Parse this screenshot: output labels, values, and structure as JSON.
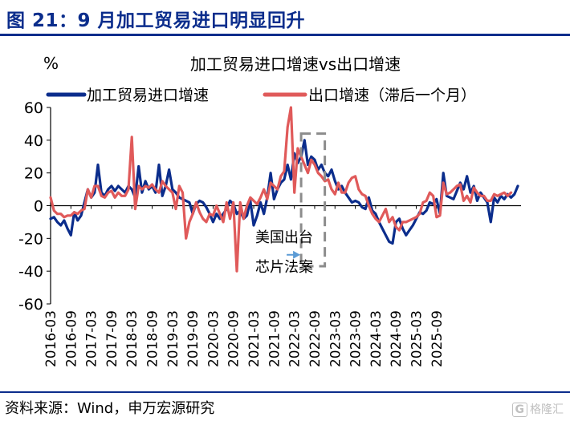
{
  "figure_title": "图 21：9 月加工贸易进口明显回升",
  "source": "资料来源：Wind，申万宏源研究",
  "watermark": "格隆汇",
  "watermark_icon": "G",
  "chart_data": {
    "type": "line",
    "title": "加工贸易进口增速vs出口增速",
    "ylabel": "%",
    "ylim": [
      -60,
      60
    ],
    "yticks": [
      60,
      40,
      20,
      0,
      -20,
      -40,
      -60
    ],
    "xticks": [
      "2016-03",
      "2016-09",
      "2017-03",
      "2017-09",
      "2018-03",
      "2018-09",
      "2019-03",
      "2019-09",
      "2020-03",
      "2020-09",
      "2021-03",
      "2021-09",
      "2022-03",
      "2022-09",
      "2023-03",
      "2023-09",
      "2024-03",
      "2024-09",
      "2025-03",
      "2025-09"
    ],
    "grid": false,
    "legend_position": "top",
    "annotation": {
      "lines": [
        "美国出台",
        "芯片法案"
      ],
      "box_x_range": [
        "2022-05",
        "2022-12"
      ],
      "box_y_range": [
        -37,
        44
      ],
      "arrow_target_y": -30
    },
    "series": [
      {
        "name": "加工贸易进口增速",
        "color": "#0b2d8c",
        "values": [
          -8,
          -7,
          -10,
          -12,
          -9,
          -14,
          -18,
          -4,
          -9,
          -6,
          2,
          10,
          5,
          8,
          25,
          8,
          6,
          10,
          12,
          9,
          12,
          10,
          8,
          12,
          10,
          5,
          24,
          8,
          15,
          10,
          12,
          8,
          25,
          6,
          12,
          22,
          10,
          8,
          5,
          4,
          3,
          2,
          -5,
          1,
          3,
          2,
          -1,
          -5,
          -10,
          -5,
          -8,
          -5,
          -2,
          3,
          1,
          -5,
          -3,
          -8,
          -6,
          3,
          -12,
          -6,
          2,
          -5,
          5,
          20,
          4,
          10,
          14,
          16,
          25,
          16,
          32,
          26,
          30,
          40,
          25,
          30,
          28,
          22,
          25,
          20,
          18,
          22,
          15,
          10,
          12,
          8,
          5,
          2,
          3,
          2,
          -1,
          -2,
          5,
          -3,
          -5,
          -10,
          -14,
          -18,
          -22,
          -23,
          -10,
          -8,
          -14,
          -18,
          -15,
          -12,
          -8,
          -4,
          -5,
          -3,
          2,
          1,
          4,
          -5,
          20,
          6,
          5,
          4,
          9,
          14,
          10,
          18,
          8,
          12,
          3,
          8,
          5,
          2,
          -10,
          5,
          2,
          6,
          4,
          7,
          5,
          7,
          12
        ]
      },
      {
        "name": "出口增速（滞后一个月）",
        "color": "#e05a5a",
        "values": [
          5,
          -3,
          -5,
          -5,
          -7,
          -6,
          -6,
          -4,
          -5,
          -3,
          -2,
          10,
          5,
          12,
          12,
          6,
          5,
          8,
          9,
          5,
          8,
          6,
          6,
          10,
          42,
          -2,
          12,
          10,
          12,
          11,
          13,
          10,
          8,
          15,
          12,
          10,
          8,
          -2,
          12,
          8,
          -20,
          -10,
          -5,
          2,
          -4,
          -8,
          -10,
          -5,
          -6,
          0,
          -5,
          -10,
          2,
          -8,
          2,
          -40,
          2,
          -8,
          0,
          5,
          3,
          1,
          5,
          10,
          4,
          14,
          12,
          10,
          18,
          21,
          48,
          60,
          8,
          35,
          30,
          25,
          20,
          28,
          25,
          20,
          18,
          15,
          16,
          10,
          7,
          14,
          8,
          8,
          14,
          17,
          18,
          10,
          7,
          6,
          0,
          -5,
          -8,
          -10,
          -6,
          -2,
          -10,
          -7,
          -13,
          -15,
          -10,
          -10,
          -9,
          -8,
          -7,
          -5,
          2,
          3,
          8,
          6,
          -7,
          -6,
          14,
          7,
          8,
          10,
          12,
          13,
          3,
          6,
          2,
          11,
          8,
          6,
          6,
          3,
          3,
          7,
          6,
          7,
          8,
          6,
          8
        ]
      }
    ]
  }
}
